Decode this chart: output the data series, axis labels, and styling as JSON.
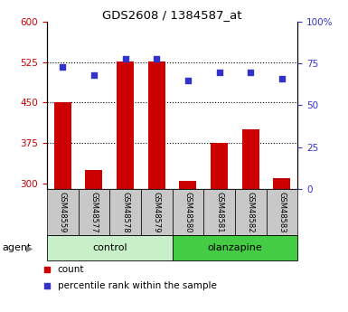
{
  "title": "GDS2608 / 1384587_at",
  "samples": [
    "GSM48559",
    "GSM48577",
    "GSM48578",
    "GSM48579",
    "GSM48580",
    "GSM48581",
    "GSM48582",
    "GSM48583"
  ],
  "counts": [
    450,
    325,
    527,
    527,
    305,
    375,
    400,
    310
  ],
  "percentiles": [
    73,
    68,
    78,
    78,
    65,
    70,
    70,
    66
  ],
  "bar_color": "#CC0000",
  "dot_color": "#3333CC",
  "ylim_left": [
    290,
    600
  ],
  "ylim_right": [
    0,
    100
  ],
  "yticks_left": [
    300,
    375,
    450,
    525,
    600
  ],
  "yticks_right": [
    0,
    25,
    50,
    75,
    100
  ],
  "ytick_labels_right": [
    "0",
    "25",
    "50",
    "75",
    "100%"
  ],
  "left_axis_color": "#CC0000",
  "right_axis_color": "#3333CC",
  "tick_label_bg": "#c8c8c8",
  "control_color": "#c8f0c8",
  "olanzapine_color": "#44cc44",
  "legend_count": "count",
  "legend_percentile": "percentile rank within the sample"
}
